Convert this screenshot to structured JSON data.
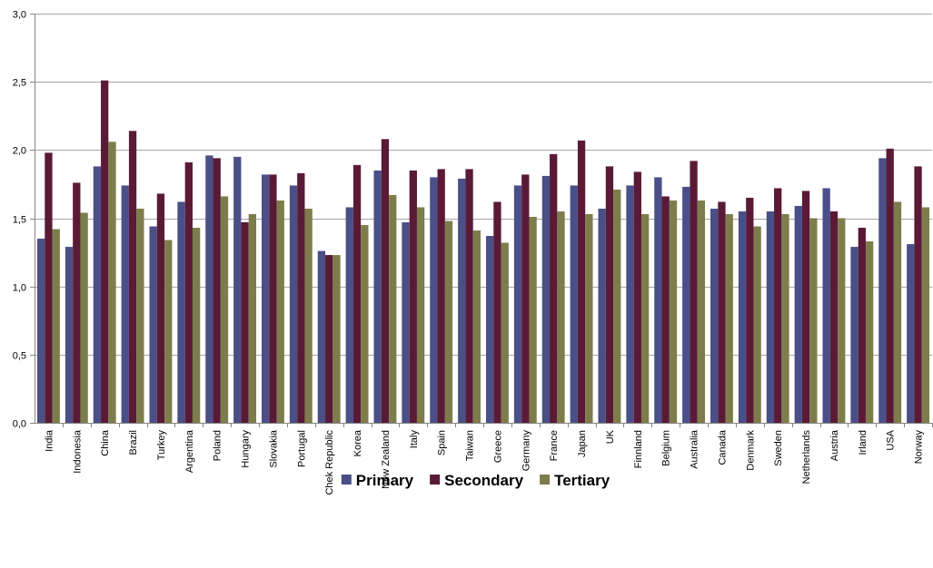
{
  "chart_data": {
    "type": "bar",
    "title": "",
    "xlabel": "",
    "ylabel": "",
    "ylim": [
      0,
      3.0
    ],
    "yticks": [
      "0,0",
      "0,5",
      "1,0",
      "1,5",
      "2,0",
      "2,5",
      "3,0"
    ],
    "ytick_values": [
      0,
      0.5,
      1.0,
      1.5,
      2.0,
      2.5,
      3.0
    ],
    "grid": "horizontal",
    "legend_position": "bottom",
    "categories": [
      "India",
      "Indonesia",
      "China",
      "Brazil",
      "Turkey",
      "Argentina",
      "Poland",
      "Hungary",
      "Slovakia",
      "Portugal",
      "Chek Republic",
      "Korea",
      "New Zealand",
      "Italy",
      "Spain",
      "Taiwan",
      "Greece",
      "Germany",
      "France",
      "Japan",
      "UK",
      "Finnland",
      "Belgium",
      "Australia",
      "Canada",
      "Denmark",
      "Sweden",
      "Netherlands",
      "Austria",
      "Irland",
      "USA",
      "Norway"
    ],
    "series": [
      {
        "name": "Primary",
        "color": "#4b4f87",
        "values": [
          1.35,
          1.29,
          1.88,
          1.74,
          1.44,
          1.62,
          1.96,
          1.95,
          1.82,
          1.74,
          1.26,
          1.58,
          1.85,
          1.47,
          1.8,
          1.79,
          1.37,
          1.74,
          1.81,
          1.74,
          1.57,
          1.74,
          1.8,
          1.73,
          1.57,
          1.55,
          1.55,
          1.59,
          1.72,
          1.29,
          1.94,
          1.31
        ]
      },
      {
        "name": "Secondary",
        "color": "#5a1a36",
        "values": [
          1.98,
          1.76,
          2.51,
          2.14,
          1.68,
          1.91,
          1.94,
          1.47,
          1.82,
          1.83,
          1.23,
          1.89,
          2.08,
          1.85,
          1.86,
          1.86,
          1.62,
          1.82,
          1.97,
          2.07,
          1.88,
          1.84,
          1.66,
          1.92,
          1.62,
          1.65,
          1.72,
          1.7,
          1.55,
          1.43,
          2.01,
          1.88
        ]
      },
      {
        "name": "Tertiary",
        "color": "#7d7d4b",
        "values": [
          1.42,
          1.54,
          2.06,
          1.57,
          1.34,
          1.43,
          1.66,
          1.53,
          1.63,
          1.57,
          1.23,
          1.45,
          1.67,
          1.58,
          1.48,
          1.41,
          1.32,
          1.51,
          1.55,
          1.53,
          1.71,
          1.53,
          1.63,
          1.63,
          1.53,
          1.44,
          1.53,
          1.5,
          1.5,
          1.33,
          1.62,
          1.58
        ]
      }
    ]
  }
}
